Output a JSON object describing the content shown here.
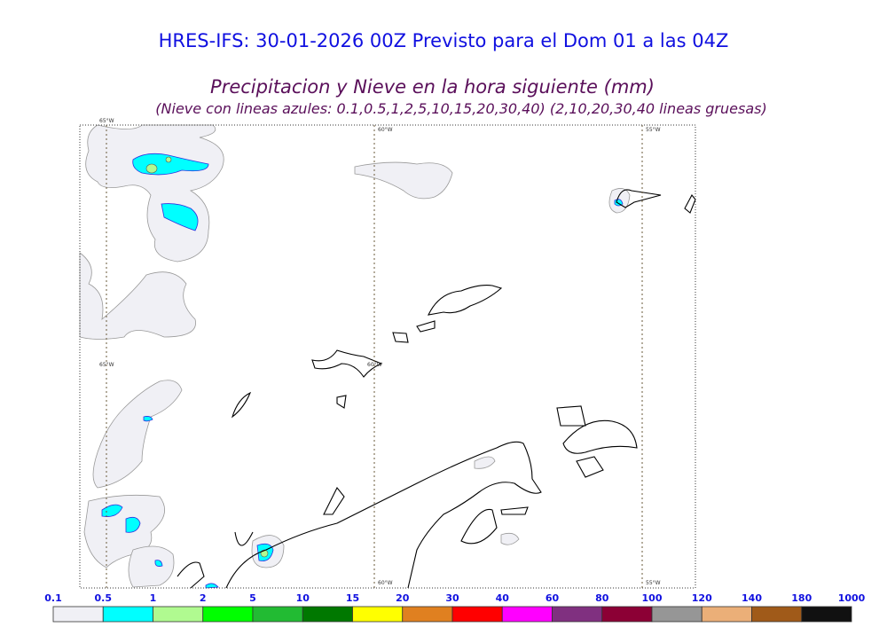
{
  "title": "HRES-IFS: 30-01-2026 00Z Previsto para el Dom 01 a las 04Z",
  "subtitle": "Precipitacion y Nieve en la hora siguiente (mm)",
  "note": "(Nieve con lineas azules: 0.1,0.5,1,2,5,10,15,20,30,40)  (2,10,20,30,40 lineas gruesas)",
  "meridians": [
    "65°W",
    "60°W",
    "55°W"
  ],
  "legend": {
    "labels": [
      "0.1",
      "0.5",
      "1",
      "2",
      "5",
      "10",
      "15",
      "20",
      "30",
      "40",
      "60",
      "80",
      "100",
      "120",
      "140",
      "180",
      "1000"
    ],
    "colors": [
      "#f0f0f5",
      "#00ffff",
      "#b0fa90",
      "#00ff00",
      "#22bb33",
      "#007800",
      "#ffff00",
      "#e08020",
      "#ff0000",
      "#ff00ff",
      "#803080",
      "#8c0035",
      "#969696",
      "#ebaf78",
      "#a05a19",
      "#111111"
    ]
  }
}
